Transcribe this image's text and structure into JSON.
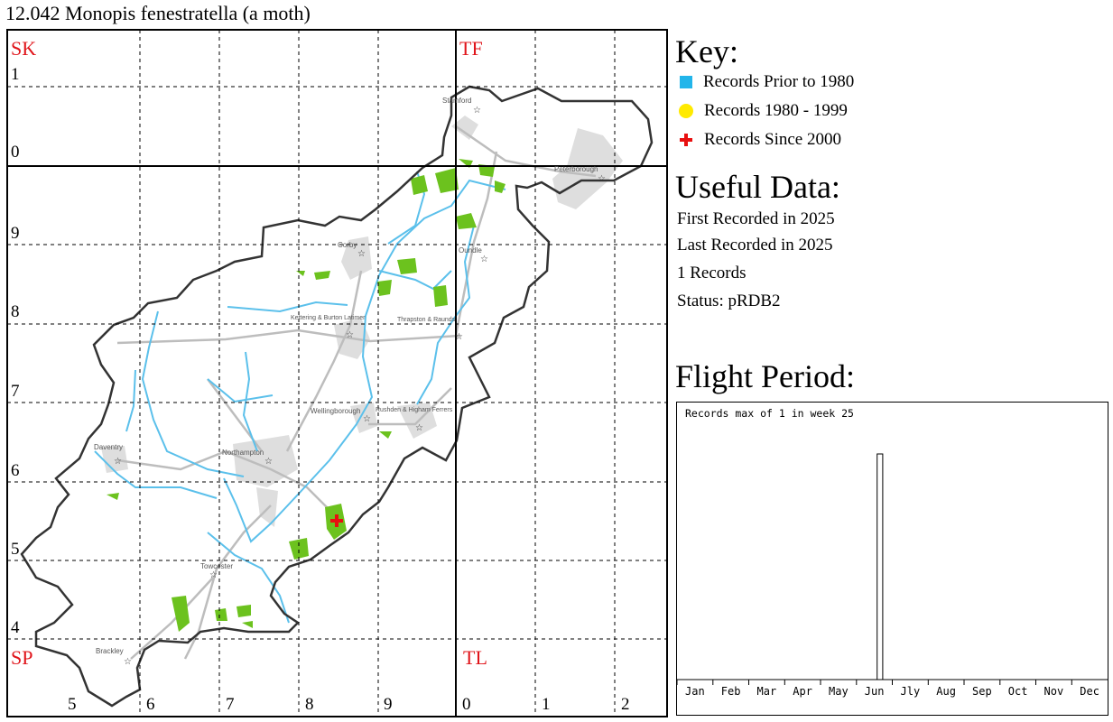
{
  "title": "12.042 Monopis fenestratella (a moth)",
  "map": {
    "corner_labels": [
      "SK",
      "TF",
      "SP",
      "TL"
    ],
    "row_labels": [
      "1",
      "0",
      "9",
      "8",
      "7",
      "6",
      "5",
      "4"
    ],
    "col_labels": [
      "5",
      "6",
      "7",
      "8",
      "9",
      "0",
      "1",
      "2"
    ],
    "towns": [
      "Stamford",
      "Peterborough",
      "Corby",
      "Oundle",
      "Kettering & Burton Latimer",
      "Thrapston & Raunds",
      "Wellingborough",
      "Rushden & Higham Ferrers",
      "Daventry",
      "Northampton",
      "Towcester",
      "Brackley"
    ],
    "record_marker": "cross",
    "colors": {
      "boundary": "#333333",
      "rivers": "#5bc0eb",
      "roads": "#bdbdbd",
      "urban": "#dedede",
      "woodland": "#6cc21e",
      "record": "#e81010"
    }
  },
  "key": {
    "title": "Key:",
    "items": [
      {
        "label": "Records Prior to 1980",
        "symbol": "square",
        "color": "#22b5ea"
      },
      {
        "label": "Records 1980 - 1999",
        "symbol": "circle",
        "color": "#ffea00"
      },
      {
        "label": "Records Since 2000",
        "symbol": "cross",
        "color": "#e81010"
      }
    ]
  },
  "useful": {
    "title": "Useful Data:",
    "first": "First Recorded in 2025",
    "last": "Last Recorded in 2025",
    "count": "1 Records",
    "status": "Status: pRDB2"
  },
  "flight": {
    "title": "Flight Period:",
    "header": "Records max of 1 in week 25"
  },
  "chart_data": {
    "type": "bar",
    "title": "Records max of 1 in week 25",
    "month_labels": [
      "Jan",
      "Feb",
      "Mar",
      "Apr",
      "May",
      "Jun",
      "Jly",
      "Aug",
      "Sep",
      "Oct",
      "Nov",
      "Dec"
    ],
    "weeks": 52,
    "series": [
      {
        "week": 25,
        "value": 1
      }
    ],
    "ylim": [
      0,
      1.2
    ]
  }
}
